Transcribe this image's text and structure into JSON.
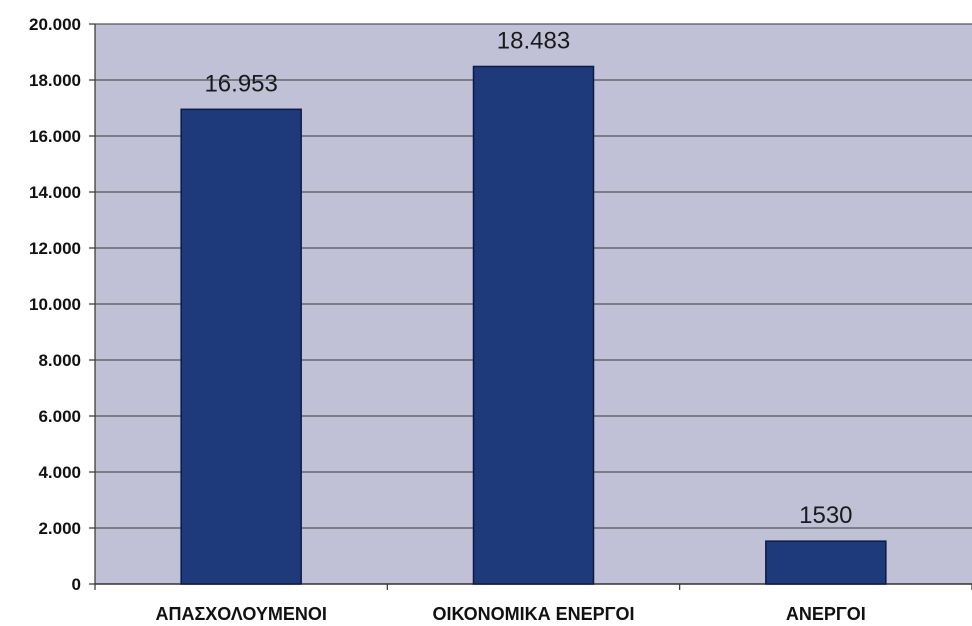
{
  "chart_data": {
    "type": "bar",
    "categories": [
      "ΑΠΑΣΧΟΛΟΥΜΕΝΟΙ",
      "ΟΙΚΟΝΟΜΙΚΑ ΕΝΕΡΓΟΙ",
      "ΑΝΕΡΓΟΙ"
    ],
    "values": [
      16953,
      18483,
      1530
    ],
    "data_labels": [
      "16.953",
      "18.483",
      "1530"
    ],
    "title": "",
    "xlabel": "",
    "ylabel": "",
    "ylim": [
      0,
      20000
    ],
    "y_ticks": [
      0,
      2000,
      4000,
      6000,
      8000,
      10000,
      12000,
      14000,
      16000,
      18000,
      20000
    ],
    "y_tick_labels": [
      "0",
      "2.000",
      "4.000",
      "6.000",
      "8.000",
      "10.000",
      "12.000",
      "14.000",
      "16.000",
      "18.000",
      "20.000"
    ],
    "grid": true,
    "legend": "none",
    "colors": {
      "bar": "#1f3a7a",
      "bar_border": "#0b1b45",
      "plot_background": "#c0c0d6",
      "gridline": "#555555"
    }
  }
}
